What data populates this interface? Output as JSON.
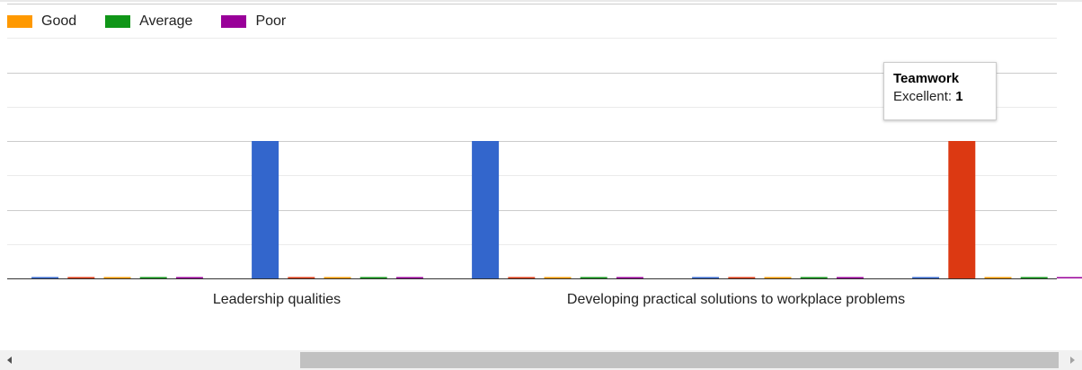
{
  "legend": [
    {
      "label": "Good",
      "color": "#ff9900"
    },
    {
      "label": "Average",
      "color": "#109618"
    },
    {
      "label": "Poor",
      "color": "#990099"
    }
  ],
  "chart_data": {
    "type": "bar",
    "categories": [
      "",
      "Leadership qualities",
      "",
      "Developing practical solutions to workplace problems",
      "",
      "Teamwork"
    ],
    "visible_axis_labels": [
      "Leadership qualities",
      "Developing practical solutions to workplace problems"
    ],
    "series_colors": {
      "Excellent": "#3366cc",
      "red": "#dc3912",
      "Good": "#ff9900",
      "Average": "#109618",
      "Poor": "#990099"
    },
    "series": [
      {
        "name": "Excellent",
        "color": "#3366cc",
        "values": [
          0,
          1,
          1,
          0,
          0,
          1
        ]
      },
      {
        "name": "",
        "color": "#dc3912",
        "values": [
          0,
          0,
          0,
          0,
          1,
          0
        ]
      },
      {
        "name": "Good",
        "color": "#ff9900",
        "values": [
          0,
          0,
          0,
          0,
          0,
          0
        ]
      },
      {
        "name": "Average",
        "color": "#109618",
        "values": [
          0,
          0,
          0,
          0,
          0,
          0
        ]
      },
      {
        "name": "Poor",
        "color": "#990099",
        "values": [
          0,
          0,
          0,
          0,
          0,
          0
        ]
      }
    ],
    "ylim": [
      0,
      2
    ],
    "grid": true,
    "legend_position": "top-left"
  },
  "tooltip": {
    "title": "Teamwork",
    "series_label": "Excellent:",
    "value": "1"
  },
  "scrollbar": {
    "left_icon": "triangle-left-icon",
    "right_icon": "triangle-right-icon"
  }
}
